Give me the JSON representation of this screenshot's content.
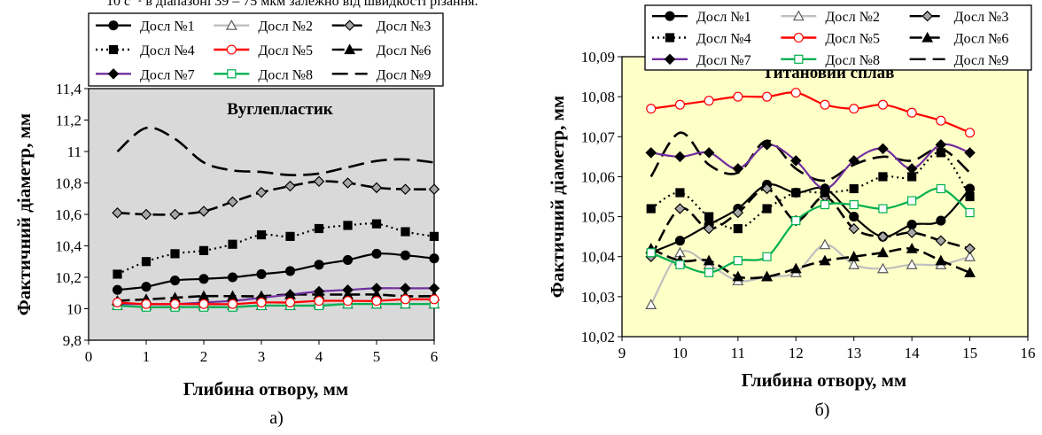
{
  "caption_top": "10 с⁻¹ в діапазоні 39 – 75 мкм залежно від швидкості різання.",
  "chart_data": [
    {
      "type": "line",
      "panel_label": "а)",
      "title": "Вуглепластик",
      "xlabel": "Глибина отвору, мм",
      "ylabel": "Фактичний діаметр, мм",
      "xlim": [
        0,
        6
      ],
      "ylim": [
        9.8,
        11.4
      ],
      "xticks": [
        "0",
        "1",
        "2",
        "3",
        "4",
        "5",
        "6"
      ],
      "yticks": [
        "9,8",
        "10",
        "10,2",
        "10,4",
        "10,6",
        "10,8",
        "11",
        "11,2",
        "11,4"
      ],
      "grid": false,
      "background": "#d9d9d9",
      "legend_placement": "top",
      "x": [
        0.5,
        1,
        1.5,
        2,
        2.5,
        3,
        3.5,
        4,
        4.5,
        5,
        5.5,
        6
      ],
      "series": [
        {
          "name": "Досл №1",
          "values": [
            10.12,
            10.14,
            10.18,
            10.19,
            10.2,
            10.22,
            10.24,
            10.28,
            10.31,
            10.35,
            10.34,
            10.32
          ]
        },
        {
          "name": "Досл №2",
          "values": [
            10.02,
            10.02,
            10.02,
            10.02,
            10.02,
            10.02,
            10.02,
            10.03,
            10.03,
            10.03,
            10.03,
            10.03
          ]
        },
        {
          "name": "Досл №3",
          "values": [
            10.61,
            10.6,
            10.6,
            10.62,
            10.68,
            10.74,
            10.78,
            10.81,
            10.8,
            10.77,
            10.76,
            10.76
          ]
        },
        {
          "name": "Досл №4",
          "values": [
            10.22,
            10.3,
            10.35,
            10.37,
            10.41,
            10.47,
            10.46,
            10.51,
            10.53,
            10.54,
            10.49,
            10.46
          ]
        },
        {
          "name": "Досл №5",
          "values": [
            10.04,
            10.03,
            10.03,
            10.03,
            10.03,
            10.04,
            10.04,
            10.05,
            10.05,
            10.05,
            10.06,
            10.06
          ]
        },
        {
          "name": "Досл №6",
          "values": [
            10.05,
            10.06,
            10.07,
            10.08,
            10.08,
            10.08,
            10.09,
            10.09,
            10.09,
            10.09,
            10.08,
            10.08
          ]
        },
        {
          "name": "Досл №7",
          "values": [
            10.03,
            10.03,
            10.03,
            10.04,
            10.05,
            10.07,
            10.09,
            10.11,
            10.12,
            10.13,
            10.13,
            10.13
          ]
        },
        {
          "name": "Досл №8",
          "values": [
            10.02,
            10.01,
            10.01,
            10.01,
            10.01,
            10.02,
            10.02,
            10.02,
            10.03,
            10.03,
            10.03,
            10.03
          ]
        },
        {
          "name": "Досл №9",
          "values": [
            11.0,
            11.15,
            11.08,
            10.93,
            10.88,
            10.87,
            10.85,
            10.86,
            10.9,
            10.94,
            10.95,
            10.93
          ]
        }
      ]
    },
    {
      "type": "line",
      "panel_label": "б)",
      "title": "Титановий сплав",
      "xlabel": "Глибина отвору, мм",
      "ylabel": "Фактичний діаметр, мм",
      "xlim": [
        9,
        16
      ],
      "ylim": [
        10.02,
        10.09
      ],
      "xticks": [
        "9",
        "10",
        "11",
        "12",
        "13",
        "14",
        "15",
        "16"
      ],
      "yticks": [
        "10,02",
        "10,03",
        "10,04",
        "10,05",
        "10,06",
        "10,07",
        "10,08",
        "10,09"
      ],
      "grid": false,
      "background": "#ffffc8",
      "legend_placement": "top",
      "x": [
        9.5,
        10,
        10.5,
        11,
        11.5,
        12,
        12.5,
        13,
        13.5,
        14,
        14.5,
        15
      ],
      "series": [
        {
          "name": "Досл №1",
          "values": [
            10.041,
            10.044,
            10.048,
            10.052,
            10.058,
            10.056,
            10.057,
            10.05,
            10.045,
            10.048,
            10.049,
            10.057
          ]
        },
        {
          "name": "Досл №2",
          "values": [
            10.028,
            10.041,
            10.038,
            10.034,
            10.035,
            10.036,
            10.043,
            10.038,
            10.037,
            10.038,
            10.038,
            10.04
          ]
        },
        {
          "name": "Досл №3",
          "values": [
            10.04,
            10.052,
            10.047,
            10.051,
            10.057,
            10.049,
            10.055,
            10.047,
            10.045,
            10.046,
            10.044,
            10.042
          ]
        },
        {
          "name": "Досл №4",
          "values": [
            10.052,
            10.056,
            10.05,
            10.047,
            10.052,
            10.056,
            10.056,
            10.057,
            10.06,
            10.06,
            10.066,
            10.055
          ]
        },
        {
          "name": "Досл №5",
          "values": [
            10.077,
            10.078,
            10.079,
            10.08,
            10.08,
            10.081,
            10.078,
            10.077,
            10.078,
            10.076,
            10.074,
            10.071
          ]
        },
        {
          "name": "Досл №6",
          "values": [
            10.042,
            10.039,
            10.039,
            10.035,
            10.035,
            10.037,
            10.039,
            10.04,
            10.041,
            10.042,
            10.039,
            10.036
          ]
        },
        {
          "name": "Досл №7",
          "values": [
            10.066,
            10.065,
            10.066,
            10.062,
            10.068,
            10.064,
            10.057,
            10.064,
            10.067,
            10.062,
            10.068,
            10.066
          ]
        },
        {
          "name": "Досл №8",
          "values": [
            10.041,
            10.038,
            10.036,
            10.039,
            10.04,
            10.049,
            10.053,
            10.053,
            10.052,
            10.054,
            10.057,
            10.051
          ]
        },
        {
          "name": "Досл №9",
          "values": [
            10.06,
            10.071,
            10.063,
            10.061,
            10.069,
            10.062,
            10.059,
            10.063,
            10.065,
            10.064,
            10.067,
            10.061
          ]
        }
      ]
    }
  ],
  "series_styles": [
    {
      "color": "#000000",
      "dash": "",
      "marker": "circle",
      "fill": "#000000"
    },
    {
      "color": "#bfbfbf",
      "dash": "",
      "marker": "triangle",
      "fill": "#ffffff"
    },
    {
      "color": "#000000",
      "dash": "14 6",
      "marker": "diamond",
      "fill": "#a6a6a6"
    },
    {
      "color": "#000000",
      "dash": "2 4",
      "marker": "square",
      "fill": "#000000"
    },
    {
      "color": "#ff0000",
      "dash": "",
      "marker": "circle",
      "fill": "#ffffff"
    },
    {
      "color": "#000000",
      "dash": "14 6",
      "marker": "triangle",
      "fill": "#000000"
    },
    {
      "color": "#7030a0",
      "dash": "",
      "marker": "diamond",
      "fill": "#000000"
    },
    {
      "color": "#00b050",
      "dash": "",
      "marker": "square",
      "fill": "#ffffff"
    },
    {
      "color": "#000000",
      "dash": "18 8",
      "marker": "none",
      "fill": "none"
    }
  ]
}
